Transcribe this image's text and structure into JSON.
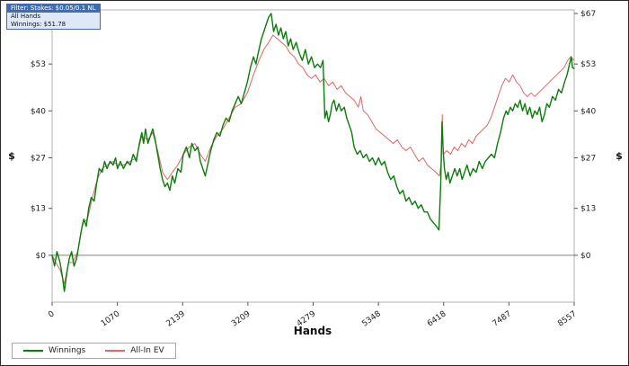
{
  "info_box": {
    "line1": "Filter: Stakes: $0.05/0.1 NL",
    "line2": "All Hands",
    "line3": "Winnings: $51.78"
  },
  "legend": {
    "items": [
      {
        "label": "Winnings",
        "color": "#0b7d0b"
      },
      {
        "label": "All-In EV",
        "color": "#dd6666"
      }
    ]
  },
  "chart_data": {
    "type": "line",
    "title": "",
    "xlabel": "Hands",
    "ylabel": "$",
    "xlim": [
      0,
      8557
    ],
    "ylim": [
      -13,
      68
    ],
    "x_ticks": [
      0,
      1070,
      2139,
      3209,
      4279,
      5348,
      6418,
      7487,
      8557
    ],
    "y_ticks": [
      0,
      13,
      27,
      40,
      53,
      67
    ],
    "y_tick_labels": [
      "$0",
      "$13",
      "$27",
      "$40",
      "$53",
      "$67"
    ],
    "grid": false,
    "zero_line": 0,
    "legend_position": "bottom-left",
    "final_winnings": 51.78,
    "series": [
      {
        "name": "Winnings",
        "color": "#0b7d0b",
        "points": [
          [
            0,
            0
          ],
          [
            40,
            -3
          ],
          [
            80,
            1
          ],
          [
            130,
            -2
          ],
          [
            170,
            -6
          ],
          [
            200,
            -10
          ],
          [
            240,
            -5
          ],
          [
            280,
            -1
          ],
          [
            320,
            1
          ],
          [
            360,
            -3
          ],
          [
            400,
            -1
          ],
          [
            440,
            3
          ],
          [
            480,
            7
          ],
          [
            520,
            10
          ],
          [
            560,
            8
          ],
          [
            600,
            13
          ],
          [
            640,
            16
          ],
          [
            690,
            15
          ],
          [
            730,
            20
          ],
          [
            770,
            24
          ],
          [
            820,
            23
          ],
          [
            860,
            26
          ],
          [
            900,
            24
          ],
          [
            950,
            26
          ],
          [
            1000,
            25
          ],
          [
            1040,
            27
          ],
          [
            1070,
            24
          ],
          [
            1120,
            26
          ],
          [
            1170,
            24
          ],
          [
            1230,
            26
          ],
          [
            1280,
            25
          ],
          [
            1330,
            28
          ],
          [
            1380,
            26
          ],
          [
            1430,
            31
          ],
          [
            1470,
            34
          ],
          [
            1500,
            31
          ],
          [
            1530,
            35
          ],
          [
            1570,
            31
          ],
          [
            1610,
            33
          ],
          [
            1650,
            35
          ],
          [
            1690,
            32
          ],
          [
            1730,
            28
          ],
          [
            1770,
            24
          ],
          [
            1810,
            21
          ],
          [
            1850,
            19
          ],
          [
            1890,
            20
          ],
          [
            1930,
            18
          ],
          [
            1970,
            22
          ],
          [
            2010,
            20
          ],
          [
            2060,
            24
          ],
          [
            2110,
            23
          ],
          [
            2150,
            28
          ],
          [
            2200,
            30
          ],
          [
            2250,
            27
          ],
          [
            2290,
            31
          ],
          [
            2340,
            29
          ],
          [
            2390,
            30
          ],
          [
            2430,
            26
          ],
          [
            2470,
            24
          ],
          [
            2510,
            22
          ],
          [
            2550,
            25
          ],
          [
            2600,
            29
          ],
          [
            2650,
            32
          ],
          [
            2700,
            34
          ],
          [
            2750,
            33
          ],
          [
            2800,
            36
          ],
          [
            2850,
            38
          ],
          [
            2900,
            37
          ],
          [
            2950,
            40
          ],
          [
            3000,
            42
          ],
          [
            3050,
            44
          ],
          [
            3100,
            42
          ],
          [
            3150,
            45
          ],
          [
            3200,
            48
          ],
          [
            3250,
            52
          ],
          [
            3300,
            55
          ],
          [
            3340,
            53
          ],
          [
            3390,
            57
          ],
          [
            3430,
            60
          ],
          [
            3470,
            62
          ],
          [
            3510,
            64
          ],
          [
            3550,
            66
          ],
          [
            3590,
            67
          ],
          [
            3630,
            62
          ],
          [
            3670,
            64
          ],
          [
            3710,
            61
          ],
          [
            3750,
            63
          ],
          [
            3790,
            60
          ],
          [
            3830,
            62
          ],
          [
            3870,
            58
          ],
          [
            3910,
            60
          ],
          [
            3950,
            57
          ],
          [
            4000,
            59
          ],
          [
            4050,
            56
          ],
          [
            4100,
            54
          ],
          [
            4150,
            57
          ],
          [
            4200,
            53
          ],
          [
            4250,
            55
          ],
          [
            4300,
            52
          ],
          [
            4350,
            53
          ],
          [
            4400,
            52
          ],
          [
            4440,
            54
          ],
          [
            4470,
            38
          ],
          [
            4500,
            40
          ],
          [
            4530,
            37
          ],
          [
            4560,
            39
          ],
          [
            4590,
            42
          ],
          [
            4620,
            43
          ],
          [
            4660,
            40
          ],
          [
            4700,
            42
          ],
          [
            4740,
            40
          ],
          [
            4790,
            41
          ],
          [
            4830,
            38
          ],
          [
            4870,
            36
          ],
          [
            4910,
            34
          ],
          [
            4950,
            30
          ],
          [
            5000,
            28
          ],
          [
            5050,
            29
          ],
          [
            5100,
            27
          ],
          [
            5150,
            28
          ],
          [
            5200,
            26
          ],
          [
            5250,
            27
          ],
          [
            5300,
            25
          ],
          [
            5350,
            27
          ],
          [
            5400,
            25
          ],
          [
            5450,
            26
          ],
          [
            5500,
            23
          ],
          [
            5550,
            21
          ],
          [
            5600,
            22
          ],
          [
            5650,
            19
          ],
          [
            5700,
            17
          ],
          [
            5750,
            18
          ],
          [
            5800,
            15
          ],
          [
            5850,
            16
          ],
          [
            5900,
            14
          ],
          [
            5950,
            15
          ],
          [
            6000,
            13
          ],
          [
            6050,
            14
          ],
          [
            6100,
            12
          ],
          [
            6150,
            12
          ],
          [
            6200,
            10
          ],
          [
            6250,
            9
          ],
          [
            6300,
            8
          ],
          [
            6340,
            7
          ],
          [
            6370,
            20
          ],
          [
            6390,
            37
          ],
          [
            6410,
            29
          ],
          [
            6430,
            24
          ],
          [
            6460,
            21
          ],
          [
            6490,
            23
          ],
          [
            6520,
            20
          ],
          [
            6560,
            22
          ],
          [
            6600,
            24
          ],
          [
            6640,
            22
          ],
          [
            6680,
            24
          ],
          [
            6720,
            21
          ],
          [
            6760,
            23
          ],
          [
            6800,
            25
          ],
          [
            6850,
            22
          ],
          [
            6900,
            24
          ],
          [
            6950,
            23
          ],
          [
            7000,
            26
          ],
          [
            7050,
            24
          ],
          [
            7100,
            26
          ],
          [
            7150,
            27
          ],
          [
            7200,
            28
          ],
          [
            7250,
            27
          ],
          [
            7300,
            31
          ],
          [
            7350,
            34
          ],
          [
            7400,
            38
          ],
          [
            7440,
            40
          ],
          [
            7470,
            39
          ],
          [
            7510,
            41
          ],
          [
            7550,
            40
          ],
          [
            7590,
            42
          ],
          [
            7630,
            41
          ],
          [
            7670,
            43
          ],
          [
            7710,
            40
          ],
          [
            7750,
            42
          ],
          [
            7790,
            39
          ],
          [
            7830,
            41
          ],
          [
            7870,
            38
          ],
          [
            7910,
            40
          ],
          [
            7950,
            39
          ],
          [
            7990,
            41
          ],
          [
            8030,
            37
          ],
          [
            8070,
            39
          ],
          [
            8110,
            42
          ],
          [
            8150,
            41
          ],
          [
            8200,
            44
          ],
          [
            8250,
            43
          ],
          [
            8300,
            46
          ],
          [
            8350,
            45
          ],
          [
            8400,
            48
          ],
          [
            8440,
            50
          ],
          [
            8480,
            53
          ],
          [
            8510,
            55
          ],
          [
            8530,
            52
          ],
          [
            8557,
            51.78
          ]
        ]
      },
      {
        "name": "All-In EV",
        "color": "#dd6666",
        "points": [
          [
            0,
            0
          ],
          [
            60,
            -2
          ],
          [
            130,
            -4
          ],
          [
            200,
            -8
          ],
          [
            270,
            -2
          ],
          [
            340,
            -2
          ],
          [
            420,
            1
          ],
          [
            500,
            9
          ],
          [
            580,
            10
          ],
          [
            660,
            16
          ],
          [
            740,
            21
          ],
          [
            820,
            24
          ],
          [
            900,
            25
          ],
          [
            1000,
            26
          ],
          [
            1070,
            25
          ],
          [
            1170,
            25
          ],
          [
            1280,
            26
          ],
          [
            1380,
            27
          ],
          [
            1470,
            33
          ],
          [
            1570,
            32
          ],
          [
            1650,
            34
          ],
          [
            1730,
            29
          ],
          [
            1810,
            23
          ],
          [
            1890,
            21
          ],
          [
            1970,
            23
          ],
          [
            2060,
            25
          ],
          [
            2150,
            28
          ],
          [
            2250,
            30
          ],
          [
            2340,
            31
          ],
          [
            2430,
            28
          ],
          [
            2510,
            26
          ],
          [
            2600,
            30
          ],
          [
            2700,
            33
          ],
          [
            2800,
            35
          ],
          [
            2900,
            38
          ],
          [
            3000,
            41
          ],
          [
            3100,
            42
          ],
          [
            3200,
            45
          ],
          [
            3300,
            50
          ],
          [
            3390,
            54
          ],
          [
            3470,
            57
          ],
          [
            3550,
            59
          ],
          [
            3620,
            61
          ],
          [
            3690,
            60
          ],
          [
            3760,
            59
          ],
          [
            3830,
            58
          ],
          [
            3900,
            56
          ],
          [
            3970,
            55
          ],
          [
            4040,
            53
          ],
          [
            4110,
            52
          ],
          [
            4180,
            50
          ],
          [
            4250,
            49
          ],
          [
            4320,
            50
          ],
          [
            4390,
            48
          ],
          [
            4460,
            49
          ],
          [
            4530,
            47
          ],
          [
            4600,
            48
          ],
          [
            4670,
            46
          ],
          [
            4740,
            47
          ],
          [
            4810,
            45
          ],
          [
            4880,
            44
          ],
          [
            4950,
            43
          ],
          [
            5020,
            41
          ],
          [
            5060,
            44
          ],
          [
            5100,
            40
          ],
          [
            5170,
            39
          ],
          [
            5240,
            37
          ],
          [
            5310,
            35
          ],
          [
            5380,
            34
          ],
          [
            5450,
            33
          ],
          [
            5520,
            32
          ],
          [
            5590,
            31
          ],
          [
            5660,
            32
          ],
          [
            5730,
            30
          ],
          [
            5800,
            29
          ],
          [
            5870,
            30
          ],
          [
            5940,
            28
          ],
          [
            6010,
            26
          ],
          [
            6080,
            27
          ],
          [
            6150,
            25
          ],
          [
            6220,
            24
          ],
          [
            6290,
            23
          ],
          [
            6350,
            22
          ],
          [
            6380,
            26
          ],
          [
            6395,
            39
          ],
          [
            6410,
            28
          ],
          [
            6470,
            29
          ],
          [
            6530,
            28
          ],
          [
            6590,
            30
          ],
          [
            6650,
            29
          ],
          [
            6710,
            31
          ],
          [
            6770,
            30
          ],
          [
            6830,
            32
          ],
          [
            6890,
            31
          ],
          [
            6950,
            33
          ],
          [
            7010,
            34
          ],
          [
            7070,
            35
          ],
          [
            7130,
            36
          ],
          [
            7190,
            38
          ],
          [
            7250,
            41
          ],
          [
            7310,
            44
          ],
          [
            7370,
            47
          ],
          [
            7430,
            49
          ],
          [
            7490,
            48
          ],
          [
            7550,
            50
          ],
          [
            7610,
            48
          ],
          [
            7670,
            47
          ],
          [
            7730,
            45
          ],
          [
            7790,
            44
          ],
          [
            7850,
            45
          ],
          [
            7910,
            44
          ],
          [
            7970,
            45
          ],
          [
            8030,
            46
          ],
          [
            8090,
            47
          ],
          [
            8150,
            48
          ],
          [
            8210,
            49
          ],
          [
            8270,
            50
          ],
          [
            8330,
            51
          ],
          [
            8390,
            52
          ],
          [
            8450,
            54
          ],
          [
            8500,
            55
          ],
          [
            8557,
            54
          ]
        ]
      }
    ]
  }
}
